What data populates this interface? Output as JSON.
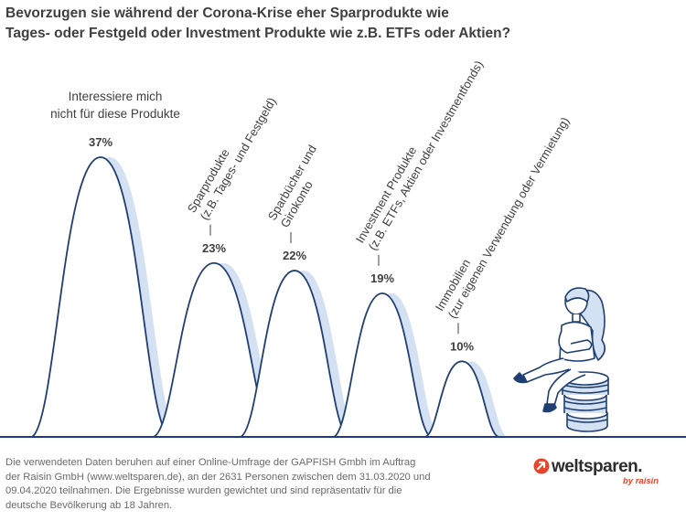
{
  "title": {
    "line1": "Bevorzugen sie während der Corona-Krise eher Sparprodukte wie",
    "line2": "Tages- oder Festgeld oder Investment Produkte wie z.B. ETFs oder Aktien?"
  },
  "chart_data": {
    "type": "bar",
    "style": "bell-shaped hills",
    "title": "Bevorzugen sie während der Corona-Krise eher Sparprodukte wie Tages- oder Festgeld oder Investment Produkte wie z.B. ETFs oder Aktien?",
    "ylim": [
      0,
      37
    ],
    "unit": "%",
    "categories": [
      {
        "label_lines": [
          "Interessiere mich",
          "nicht für diese Produkte"
        ],
        "value": 37,
        "value_label": "37%"
      },
      {
        "label_lines": [
          "Sparprodukte",
          "(z.B. Tages- und Festgeld)"
        ],
        "value": 23,
        "value_label": "23%"
      },
      {
        "label_lines": [
          "Sparbücher und",
          "Girokonto"
        ],
        "value": 22,
        "value_label": "22%"
      },
      {
        "label_lines": [
          "Investment Produkte",
          "(z.B. ETFs, Aktien oder Investmentfonds)"
        ],
        "value": 19,
        "value_label": "19%"
      },
      {
        "label_lines": [
          "Immobilien",
          "(zur eigenen Verwendung oder Vermietung)"
        ],
        "value": 10,
        "value_label": "10%"
      }
    ],
    "colors": {
      "fill": "#ffffff",
      "shade": "#d4e1f2",
      "outline": "#1f3f73",
      "text": "#3f3f3f",
      "baseline": "#1f3f73"
    }
  },
  "footnote": {
    "line1": "Die verwendeten Daten beruhen auf einer Online-Umfrage der GAPFISH Gmbh im Auftrag",
    "line2": "der Raisin GmbH (www.weltsparen.de), an der 2631 Personen zwischen dem 31.03.2020 und",
    "line3": "09.04.2020 teilnahmen. Die Ergebnisse wurden gewichtet und sind repräsentativ für die",
    "line4": "deutsche Bevölkerung ab 18 Jahren."
  },
  "logo": {
    "name": "weltsparen.",
    "tagline": "by raisin",
    "icon": "arrow-circle-icon",
    "brand_color": "#e8442b"
  },
  "illustration": {
    "icon": "woman-on-coin-stack-icon"
  }
}
